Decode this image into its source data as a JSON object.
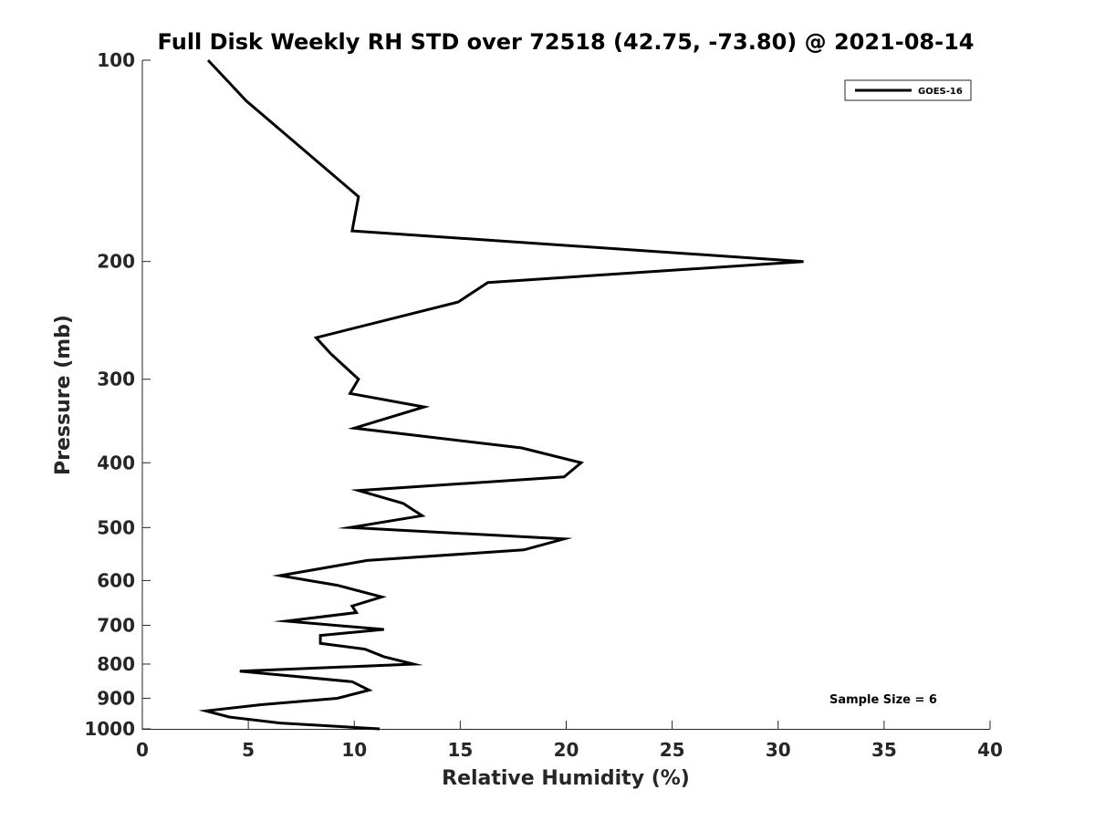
{
  "chart_data": {
    "type": "line",
    "title": "Full Disk Weekly RH STD over 72518 (42.75, -73.80) @ 2021-08-14",
    "xlabel": "Relative Humidity (%)",
    "ylabel": "Pressure (mb)",
    "xlim": [
      0,
      40
    ],
    "ylim": [
      100,
      1000
    ],
    "yscale": "log",
    "y_reversed": true,
    "grid": false,
    "legend_position": "top-right",
    "x_ticks": [
      0,
      5,
      10,
      15,
      20,
      25,
      30,
      35,
      40
    ],
    "x_tick_labels": [
      "0",
      "5",
      "10",
      "15",
      "20",
      "25",
      "30",
      "35",
      "40"
    ],
    "y_ticks": [
      100,
      200,
      300,
      400,
      500,
      600,
      700,
      800,
      900,
      1000
    ],
    "y_tick_labels": [
      "100",
      "200",
      "300",
      "400",
      "500",
      "600",
      "700",
      "800",
      "900",
      "1000"
    ],
    "annotation": "Sample Size = 6",
    "series": [
      {
        "name": "GOES-16",
        "color": "#000000",
        "x": [
          3.1,
          4.9,
          10.2,
          9.9,
          31.2,
          16.3,
          14.9,
          8.2,
          8.9,
          10.2,
          9.8,
          13.3,
          10.0,
          17.9,
          20.7,
          19.9,
          10.2,
          12.3,
          13.2,
          9.8,
          19.9,
          18.0,
          10.6,
          6.5,
          9.2,
          11.3,
          9.9,
          10.1,
          6.8,
          11.4,
          8.4,
          8.4,
          10.5,
          11.4,
          12.8,
          4.6,
          9.9,
          10.7,
          9.2,
          5.6,
          3.0,
          4.1,
          6.5,
          11.2
        ],
        "y": [
          100,
          115,
          160,
          180,
          200,
          215,
          230,
          260,
          275,
          300,
          315,
          330,
          355,
          380,
          400,
          420,
          440,
          460,
          480,
          500,
          520,
          540,
          560,
          590,
          610,
          635,
          655,
          670,
          690,
          710,
          725,
          745,
          760,
          780,
          800,
          820,
          850,
          875,
          900,
          920,
          940,
          960,
          980,
          1000
        ]
      }
    ]
  }
}
